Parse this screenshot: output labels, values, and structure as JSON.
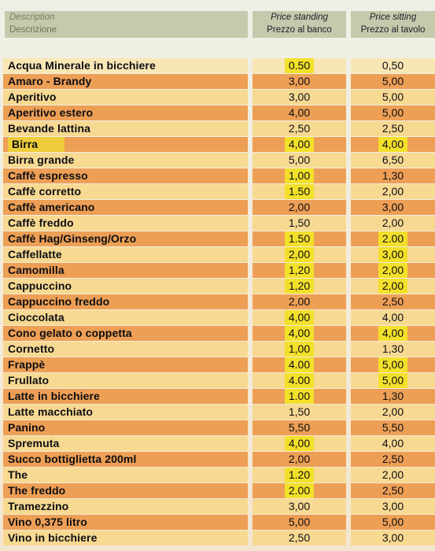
{
  "header": {
    "description_en": "Description",
    "description_it": "Descrizione",
    "standing_en": "Price standing",
    "standing_it": "Prezzo al banco",
    "sitting_en": "Price sitting",
    "sitting_it": "Prezzo al tavolo"
  },
  "items": [
    {
      "name": "Acqua Minerale in bicchiere",
      "standing": "0.50",
      "sitting": "0,50",
      "stand_hl": true,
      "sit_hl": false
    },
    {
      "name": "Amaro - Brandy",
      "standing": "3,00",
      "sitting": "5,00",
      "stand_hl": false,
      "sit_hl": false
    },
    {
      "name": "Aperitivo",
      "standing": "3,00",
      "sitting": "5,00",
      "stand_hl": false,
      "sit_hl": false
    },
    {
      "name": "Aperitivo estero",
      "standing": "4,00",
      "sitting": "5,00",
      "stand_hl": false,
      "sit_hl": false
    },
    {
      "name": "Bevande lattina",
      "standing": "2,50",
      "sitting": "2,50",
      "stand_hl": false,
      "sit_hl": false
    },
    {
      "name": "Birra",
      "standing": "4,00",
      "sitting": "4,00",
      "stand_hl": true,
      "sit_hl": true,
      "name_hl": true
    },
    {
      "name": "Birra grande",
      "standing": "5,00",
      "sitting": "6,50",
      "stand_hl": false,
      "sit_hl": false
    },
    {
      "name": "Caffè espresso",
      "standing": "1,00",
      "sitting": "1,30",
      "stand_hl": true,
      "sit_hl": false
    },
    {
      "name": "Caffè corretto",
      "standing": "1.50",
      "sitting": "2,00",
      "stand_hl": true,
      "sit_hl": false
    },
    {
      "name": "Caffè americano",
      "standing": "2,00",
      "sitting": "3,00",
      "stand_hl": false,
      "sit_hl": false
    },
    {
      "name": "Caffè freddo",
      "standing": "1,50",
      "sitting": "2,00",
      "stand_hl": false,
      "sit_hl": false
    },
    {
      "name": "Caffè Hag/Ginseng/Orzo",
      "standing": "1.50",
      "sitting": "2.00",
      "stand_hl": true,
      "sit_hl": true
    },
    {
      "name": "Caffellatte",
      "standing": "2,00",
      "sitting": "3,00",
      "stand_hl": true,
      "sit_hl": true
    },
    {
      "name": "Camomilla",
      "standing": "1,20",
      "sitting": "2,00",
      "stand_hl": true,
      "sit_hl": true
    },
    {
      "name": "Cappuccino",
      "standing": "1,20",
      "sitting": "2,00",
      "stand_hl": true,
      "sit_hl": true
    },
    {
      "name": "Cappuccino freddo",
      "standing": "2,00",
      "sitting": "2,50",
      "stand_hl": false,
      "sit_hl": false
    },
    {
      "name": "Cioccolata",
      "standing": "4,00",
      "sitting": "4,00",
      "stand_hl": true,
      "sit_hl": false
    },
    {
      "name": "Cono gelato o coppetta",
      "standing": "4,00",
      "sitting": "4,00",
      "stand_hl": true,
      "sit_hl": true
    },
    {
      "name": "Cornetto",
      "standing": "1,00",
      "sitting": "1,30",
      "stand_hl": true,
      "sit_hl": false
    },
    {
      "name": "Frappè",
      "standing": "4.00",
      "sitting": "5,00",
      "stand_hl": true,
      "sit_hl": true
    },
    {
      "name": "Frullato",
      "standing": "4.00",
      "sitting": "5,00",
      "stand_hl": true,
      "sit_hl": true
    },
    {
      "name": "Latte in bicchiere",
      "standing": "1.00",
      "sitting": "1,30",
      "stand_hl": true,
      "sit_hl": false
    },
    {
      "name": "Latte macchiato",
      "standing": "1,50",
      "sitting": "2,00",
      "stand_hl": false,
      "sit_hl": false
    },
    {
      "name": "Panino",
      "standing": "5,50",
      "sitting": "5,50",
      "stand_hl": false,
      "sit_hl": false
    },
    {
      "name": "Spremuta",
      "standing": "4,00",
      "sitting": "4,00",
      "stand_hl": true,
      "sit_hl": false
    },
    {
      "name": "Succo bottiglietta 200ml",
      "standing": "2,00",
      "sitting": "2,50",
      "stand_hl": false,
      "sit_hl": false
    },
    {
      "name": "The",
      "standing": "1.20",
      "sitting": "2,00",
      "stand_hl": true,
      "sit_hl": false
    },
    {
      "name": "The freddo",
      "standing": "2.00",
      "sitting": "2,50",
      "stand_hl": true,
      "sit_hl": false
    },
    {
      "name": "Tramezzino",
      "standing": "3,00",
      "sitting": "3,00",
      "stand_hl": false,
      "sit_hl": false
    },
    {
      "name": "Vino 0,375 litro",
      "standing": "5,00",
      "sitting": "5,00",
      "stand_hl": false,
      "sit_hl": false
    },
    {
      "name": "Vino in bicchiere",
      "standing": "2,50",
      "sitting": "3,00",
      "stand_hl": false,
      "sit_hl": false
    }
  ]
}
